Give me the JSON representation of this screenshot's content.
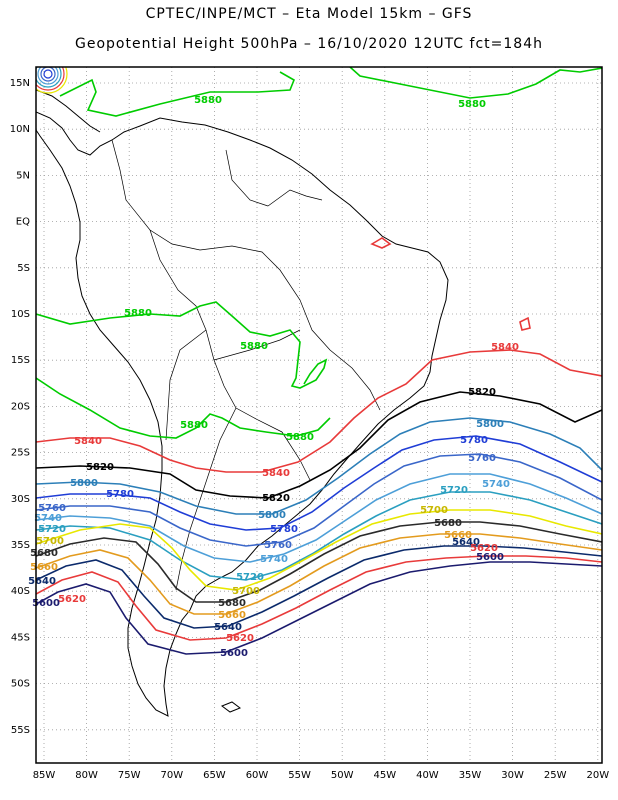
{
  "header": {
    "line1": "CPTEC/INPE/MCT –  Eta Model 15km – GFS",
    "line2": "Geopotential Height 500hPa – 16/10/2020 12UTC fct=184h"
  },
  "map": {
    "lon_labels": [
      "85W",
      "80W",
      "75W",
      "70W",
      "65W",
      "60W",
      "55W",
      "50W",
      "45W",
      "40W",
      "35W",
      "30W",
      "25W",
      "20W"
    ],
    "lat_labels": [
      "15N",
      "10N",
      "5N",
      "EQ",
      "5S",
      "10S",
      "15S",
      "20S",
      "25S",
      "30S",
      "35S",
      "40S",
      "45S",
      "50S",
      "55S"
    ],
    "colors": {
      "c5880": "#00cc00",
      "c5840": "#e83a3a",
      "c5820": "#000000",
      "c5800": "#2c7fb8",
      "c5780": "#1f3dd6",
      "c5760": "#3a66c9",
      "c5740": "#4d9fd8",
      "c5720": "#2a9fc0",
      "c5700": "#e8e800",
      "c5680": "#2a2a2a",
      "c5660": "#e39b1e",
      "c5640": "#0b2a6b",
      "c5620": "#e83a3a",
      "c5600": "#1b1b6e"
    },
    "contour_labels": [
      {
        "text": "5880",
        "color": "#00cc00"
      },
      {
        "text": "5880",
        "color": "#00cc00"
      },
      {
        "text": "5880",
        "color": "#00cc00"
      },
      {
        "text": "5880",
        "color": "#00cc00"
      },
      {
        "text": "5880",
        "color": "#00cc00"
      },
      {
        "text": "5880",
        "color": "#00cc00"
      },
      {
        "text": "5840",
        "color": "#e83a3a"
      },
      {
        "text": "5840",
        "color": "#e83a3a"
      },
      {
        "text": "5840",
        "color": "#e83a3a"
      },
      {
        "text": "5820",
        "color": "#000000"
      },
      {
        "text": "5820",
        "color": "#000000"
      },
      {
        "text": "5820",
        "color": "#000000"
      },
      {
        "text": "5800",
        "color": "#2c7fb8"
      },
      {
        "text": "5800",
        "color": "#2c7fb8"
      },
      {
        "text": "5800",
        "color": "#2c7fb8"
      },
      {
        "text": "5780",
        "color": "#1f3dd6"
      },
      {
        "text": "5780",
        "color": "#1f3dd6"
      },
      {
        "text": "5780",
        "color": "#1f3dd6"
      },
      {
        "text": "5760",
        "color": "#3a66c9"
      },
      {
        "text": "5760",
        "color": "#3a66c9"
      },
      {
        "text": "5760",
        "color": "#3a66c9"
      },
      {
        "text": "5740",
        "color": "#4d9fd8"
      },
      {
        "text": "5740",
        "color": "#4d9fd8"
      },
      {
        "text": "5740",
        "color": "#4d9fd8"
      },
      {
        "text": "5720",
        "color": "#2a9fc0"
      },
      {
        "text": "5720",
        "color": "#2a9fc0"
      },
      {
        "text": "5720",
        "color": "#2a9fc0"
      },
      {
        "text": "5700",
        "color": "#c8b800"
      },
      {
        "text": "5700",
        "color": "#c8b800"
      },
      {
        "text": "5700",
        "color": "#c8b800"
      },
      {
        "text": "5680",
        "color": "#2a2a2a"
      },
      {
        "text": "5680",
        "color": "#2a2a2a"
      },
      {
        "text": "5680",
        "color": "#2a2a2a"
      },
      {
        "text": "5660",
        "color": "#e39b1e"
      },
      {
        "text": "5660",
        "color": "#e39b1e"
      },
      {
        "text": "5660",
        "color": "#e39b1e"
      },
      {
        "text": "5640",
        "color": "#0b2a6b"
      },
      {
        "text": "5640",
        "color": "#0b2a6b"
      },
      {
        "text": "5640",
        "color": "#0b2a6b"
      },
      {
        "text": "5620",
        "color": "#e83a3a"
      },
      {
        "text": "5620",
        "color": "#e83a3a"
      },
      {
        "text": "5620",
        "color": "#e83a3a"
      },
      {
        "text": "5600",
        "color": "#1b1b6e"
      },
      {
        "text": "5600",
        "color": "#1b1b6e"
      },
      {
        "text": "5600",
        "color": "#1b1b6e"
      }
    ]
  }
}
